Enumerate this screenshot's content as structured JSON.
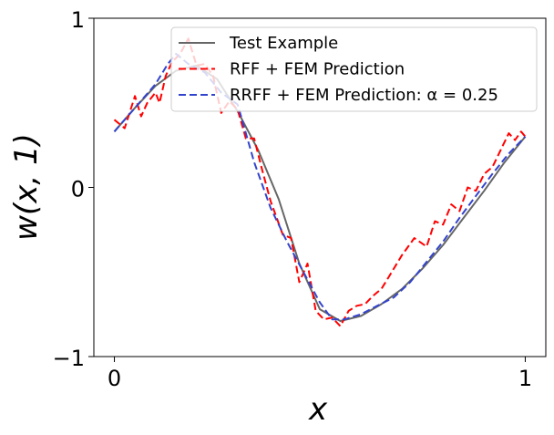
{
  "chart_data": {
    "type": "line",
    "title": "",
    "xlabel": "x",
    "ylabel": "w(x, 1)",
    "xlim": [
      -0.05,
      1.05
    ],
    "ylim": [
      -1,
      1
    ],
    "x_ticks": [
      0,
      1
    ],
    "x_tick_labels": [
      "0",
      "1"
    ],
    "y_ticks": [
      -1,
      0,
      1
    ],
    "y_tick_labels": [
      "−1",
      "0",
      "1"
    ],
    "grid": false,
    "legend_position": "top-right",
    "series": [
      {
        "name": "Test Example",
        "color": "#666666",
        "style": "solid",
        "x": [
          0.0,
          0.05,
          0.1,
          0.15,
          0.2,
          0.25,
          0.3,
          0.35,
          0.4,
          0.45,
          0.5,
          0.55,
          0.6,
          0.65,
          0.7,
          0.75,
          0.8,
          0.85,
          0.9,
          0.95,
          1.0
        ],
        "y": [
          0.33,
          0.47,
          0.6,
          0.69,
          0.72,
          0.64,
          0.45,
          0.22,
          -0.07,
          -0.45,
          -0.72,
          -0.79,
          -0.76,
          -0.69,
          -0.6,
          -0.48,
          -0.34,
          -0.18,
          -0.02,
          0.15,
          0.3
        ]
      },
      {
        "name": "RFF + FEM Prediction",
        "color": "#ff0000",
        "style": "dashed",
        "x": [
          0.0,
          0.025,
          0.05,
          0.065,
          0.08,
          0.1,
          0.11,
          0.125,
          0.14,
          0.16,
          0.18,
          0.2,
          0.22,
          0.24,
          0.26,
          0.28,
          0.3,
          0.32,
          0.34,
          0.36,
          0.38,
          0.41,
          0.43,
          0.45,
          0.47,
          0.49,
          0.51,
          0.53,
          0.55,
          0.57,
          0.59,
          0.61,
          0.63,
          0.65,
          0.67,
          0.7,
          0.73,
          0.76,
          0.78,
          0.8,
          0.82,
          0.84,
          0.86,
          0.88,
          0.9,
          0.92,
          0.94,
          0.96,
          0.975,
          0.99,
          1.0
        ],
        "y": [
          0.4,
          0.35,
          0.54,
          0.42,
          0.5,
          0.56,
          0.5,
          0.66,
          0.74,
          0.79,
          0.88,
          0.72,
          0.73,
          0.66,
          0.44,
          0.51,
          0.46,
          0.29,
          0.29,
          0.1,
          -0.08,
          -0.28,
          -0.3,
          -0.56,
          -0.45,
          -0.73,
          -0.78,
          -0.77,
          -0.82,
          -0.73,
          -0.7,
          -0.69,
          -0.64,
          -0.6,
          -0.52,
          -0.4,
          -0.3,
          -0.35,
          -0.2,
          -0.22,
          -0.1,
          -0.14,
          0.0,
          -0.02,
          0.08,
          0.12,
          0.22,
          0.32,
          0.28,
          0.33,
          0.3
        ]
      },
      {
        "name": "RRFF + FEM Prediction: α = 0.25",
        "color": "#3344cc",
        "style": "dashed",
        "x": [
          0.0,
          0.05,
          0.1,
          0.13,
          0.15,
          0.18,
          0.22,
          0.26,
          0.3,
          0.34,
          0.38,
          0.42,
          0.46,
          0.5,
          0.53,
          0.56,
          0.6,
          0.64,
          0.68,
          0.72,
          0.76,
          0.8,
          0.84,
          0.88,
          0.92,
          0.96,
          1.0
        ],
        "y": [
          0.33,
          0.47,
          0.61,
          0.73,
          0.79,
          0.73,
          0.68,
          0.56,
          0.49,
          0.15,
          -0.12,
          -0.32,
          -0.5,
          -0.68,
          -0.78,
          -0.78,
          -0.75,
          -0.7,
          -0.65,
          -0.56,
          -0.44,
          -0.32,
          -0.18,
          -0.05,
          0.08,
          0.2,
          0.3
        ]
      }
    ]
  }
}
